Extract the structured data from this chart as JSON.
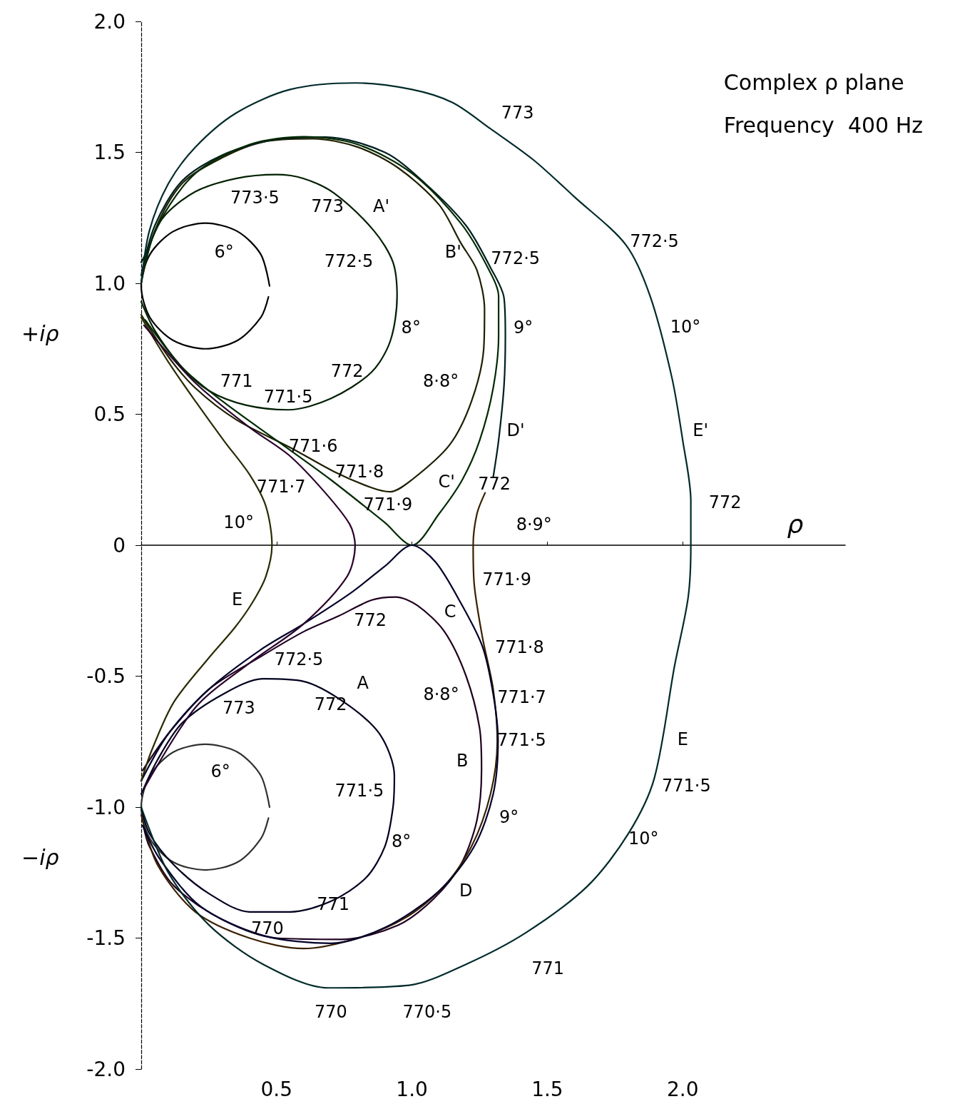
{
  "chart_data": {
    "type": "line",
    "title": "Complex ρ plane",
    "subtitle": "Frequency  400 Hz",
    "xlabel": "ρ",
    "ylabel": "+iρ",
    "xlim": [
      0,
      2.6
    ],
    "ylim": [
      -2,
      2
    ],
    "xticks": [
      0.5,
      {
        "value": 1,
        "label": "1.0"
      },
      1.5,
      {
        "value": 2,
        "label": "2.0"
      }
    ],
    "yticks": [
      {
        "value": -2,
        "label": "-2.0"
      },
      -1.5,
      {
        "value": -1,
        "label": "-1.0"
      },
      -0.5,
      0,
      0.5,
      {
        "value": 1,
        "label": "1.0"
      },
      1.5,
      {
        "value": 2,
        "label": "2.0"
      }
    ],
    "marker": "none",
    "line_style": "solid",
    "series": [
      {
        "color": "#000000",
        "x": [
          0.474,
          0.442,
          0.356,
          0.237,
          0.118,
          0.032,
          0,
          0.032,
          0.118,
          0.237,
          0.356,
          0.442,
          0.47
        ],
        "values": [
          0.99,
          1.11,
          1.198,
          1.23,
          1.198,
          1.11,
          0.99,
          0.87,
          0.782,
          0.75,
          0.782,
          0.87,
          0.948
        ]
      },
      {
        "color": "#303030",
        "x": [
          0.474,
          0.442,
          0.356,
          0.237,
          0.118,
          0.032,
          0,
          0.032,
          0.118,
          0.237,
          0.356,
          0.442,
          0.47
        ],
        "values": [
          -1.0,
          -0.88,
          -0.79,
          -0.76,
          -0.79,
          -0.88,
          -1.0,
          -1.12,
          -1.21,
          -1.24,
          -1.21,
          -1.12,
          -1.042
        ]
      },
      {
        "color": "#001f00",
        "x": [
          0,
          0.05,
          0.15,
          0.25,
          0.386,
          0.543,
          0.7,
          0.85,
          0.92,
          0.945,
          0.93,
          0.86,
          0.714,
          0.6,
          0.499,
          0.35,
          0.2,
          0.08,
          0.02,
          0
        ],
        "values": [
          0.93,
          0.82,
          0.68,
          0.59,
          0.535,
          0.517,
          0.56,
          0.66,
          0.78,
          0.95,
          1.08,
          1.2,
          1.343,
          1.4,
          1.415,
          1.4,
          1.35,
          1.25,
          1.12,
          1.08
        ]
      },
      {
        "color": "#00001f",
        "x": [
          0,
          0.06,
          0.15,
          0.3,
          0.45,
          0.6,
          0.75,
          0.88,
          0.935,
          0.93,
          0.9,
          0.83,
          0.7,
          0.55,
          0.4,
          0.25,
          0.12,
          0.03,
          0
        ],
        "values": [
          -0.95,
          -0.82,
          -0.68,
          -0.57,
          -0.51,
          -0.52,
          -0.6,
          -0.72,
          -0.88,
          -1.0,
          -1.15,
          -1.27,
          -1.36,
          -1.4,
          -1.4,
          -1.33,
          -1.22,
          -1.1,
          -1.0
        ]
      },
      {
        "color": "#1f1f00",
        "x": [
          0,
          0.1,
          0.2,
          0.35,
          0.556,
          0.714,
          0.85,
          0.919,
          1.0,
          1.139,
          1.22,
          1.265,
          1.268,
          1.24,
          1.181,
          1.1,
          0.95,
          0.8,
          0.635,
          0.45,
          0.3,
          0.15,
          0.05,
          0
        ],
        "values": [
          0.88,
          0.72,
          0.6,
          0.48,
          0.37,
          0.28,
          0.22,
          0.204,
          0.25,
          0.383,
          0.55,
          0.75,
          0.9,
          1.05,
          1.153,
          1.3,
          1.44,
          1.52,
          1.552,
          1.54,
          1.48,
          1.38,
          1.2,
          1.0
        ]
      },
      {
        "color": "#1f001f",
        "x": [
          0.005,
          0.1,
          0.25,
          0.45,
          0.6,
          0.73,
          0.85,
          0.94,
          1.02,
          1.12,
          1.2,
          1.25,
          1.257,
          1.24,
          1.18,
          1.08,
          0.95,
          0.74,
          0.5,
          0.3,
          0.12,
          0.03,
          0.01
        ],
        "values": [
          -0.86,
          -0.72,
          -0.55,
          -0.42,
          -0.33,
          -0.27,
          -0.21,
          -0.198,
          -0.23,
          -0.33,
          -0.5,
          -0.7,
          -0.855,
          -1.05,
          -1.22,
          -1.35,
          -1.45,
          -1.505,
          -1.5,
          -1.43,
          -1.3,
          -1.15,
          -1.08
        ]
      },
      {
        "color": "#001f1f",
        "x": [
          1.3,
          1.32,
          1.34,
          1.345,
          1.34,
          1.29,
          1.2,
          1.05,
          0.9,
          0.68,
          0.5,
          0.3,
          0.15,
          0.05,
          0
        ],
        "values": [
          0.26,
          0.4,
          0.61,
          0.8,
          0.944,
          1.06,
          1.22,
          1.38,
          1.5,
          1.558,
          1.55,
          1.49,
          1.39,
          1.22,
          1.03
        ]
      },
      {
        "color": "#3a2000",
        "x": [
          1.27,
          1.24,
          1.226,
          1.23,
          1.26,
          1.3,
          1.315,
          1.29,
          1.22,
          1.12,
          0.98,
          0.8,
          0.6,
          0.4,
          0.2,
          0.06,
          0
        ],
        "values": [
          0.2,
          0.12,
          0,
          -0.15,
          -0.35,
          -0.55,
          -0.75,
          -0.95,
          -1.15,
          -1.3,
          -1.42,
          -1.5,
          -1.54,
          -1.5,
          -1.4,
          -1.22,
          -1.03
        ]
      },
      {
        "color": "#002a00",
        "x": [
          0.015,
          0.15,
          0.3,
          0.5,
          0.7,
          0.898,
          1.0,
          1.1,
          1.186,
          1.25,
          1.3,
          1.32,
          1.32,
          1.28,
          1.18,
          1.0,
          0.8,
          0.6,
          0.4,
          0.2,
          0.06,
          0.01
        ],
        "values": [
          0.86,
          0.68,
          0.55,
          0.4,
          0.25,
          0.088,
          0,
          0.12,
          0.25,
          0.4,
          0.6,
          0.8,
          0.95,
          1.06,
          1.23,
          1.42,
          1.53,
          1.56,
          1.53,
          1.42,
          1.22,
          1.06
        ]
      },
      {
        "color": "#00002a",
        "x": [
          0,
          0.1,
          0.25,
          0.44,
          0.6,
          0.777,
          0.9,
          1.0,
          1.087,
          1.18,
          1.26,
          1.3,
          1.318,
          1.3,
          1.23,
          1.1,
          0.9,
          0.7,
          0.45,
          0.22,
          0.07,
          0.005
        ],
        "values": [
          -0.9,
          -0.72,
          -0.55,
          -0.4,
          -0.3,
          -0.18,
          -0.08,
          0,
          -0.064,
          -0.22,
          -0.386,
          -0.568,
          -0.743,
          -0.95,
          -1.15,
          -1.32,
          -1.46,
          -1.52,
          -1.49,
          -1.38,
          -1.2,
          -1.07
        ]
      },
      {
        "color": "#2a2a00",
        "x": [
          0,
          0.1,
          0.2,
          0.307,
          0.4,
          0.46,
          0.483,
          0.46,
          0.41,
          0.346,
          0.25,
          0.12,
          0.04,
          0
        ],
        "values": [
          0.87,
          0.7,
          0.55,
          0.397,
          0.27,
          0.15,
          0,
          -0.12,
          -0.22,
          -0.314,
          -0.43,
          -0.6,
          -0.78,
          -0.9
        ]
      },
      {
        "color": "#2a002a",
        "x": [
          0.01,
          0.2,
          0.4,
          0.55,
          0.68,
          0.77,
          0.79,
          0.76,
          0.6,
          0.4,
          0.2,
          0.01
        ],
        "values": [
          0.84,
          0.62,
          0.45,
          0.34,
          0.2,
          0.08,
          0,
          -0.12,
          -0.3,
          -0.45,
          -0.62,
          -0.93
        ]
      },
      {
        "color": "#002a2a",
        "x": [
          0,
          0.03,
          0.1,
          0.2,
          0.35,
          0.55,
          0.79,
          1.0,
          1.15,
          1.29,
          1.45,
          1.6,
          1.79,
          1.88,
          1.96,
          2.0,
          2.03,
          2.03,
          2.02,
          1.97,
          1.895,
          1.8,
          1.65,
          1.42,
          1.2,
          0.99,
          0.69,
          0.45,
          0.25,
          0.1,
          0
        ],
        "values": [
          1.0,
          1.2,
          1.38,
          1.52,
          1.65,
          1.74,
          1.765,
          1.74,
          1.69,
          1.59,
          1.47,
          1.33,
          1.147,
          0.95,
          0.64,
          0.4,
          0.169,
          0,
          -0.2,
          -0.46,
          -0.89,
          -1.1,
          -1.3,
          -1.48,
          -1.6,
          -1.68,
          -1.69,
          -1.6,
          -1.45,
          -1.25,
          -1.0
        ]
      }
    ],
    "annotations": [
      {
        "text": "6°",
        "x": 0.356,
        "y": 1.198
      },
      {
        "text": "6°",
        "x": 0.356,
        "y": -0.79
      },
      {
        "text": "8°",
        "x": 0.92,
        "y": 0.78
      },
      {
        "text": "8°",
        "x": 0.9,
        "y": -1.15
      },
      {
        "text": "8·8°",
        "x": 1.22,
        "y": 0.55
      },
      {
        "text": "8·8°",
        "x": 1.2,
        "y": -0.5
      },
      {
        "text": "9°",
        "x": 1.345,
        "y": 0.8
      },
      {
        "text": "9°",
        "x": 1.29,
        "y": -0.95
      },
      {
        "text": "10°",
        "x": 1.96,
        "y": 0.64
      },
      {
        "text": "10°",
        "x": 1.8,
        "y": -1.1
      },
      {
        "text": "10°",
        "x": 0.46,
        "y": 0.15
      },
      {
        "text": "8·9°",
        "x": 1.24,
        "y": 0.12
      },
      {
        "text": "A'",
        "x": 0.86,
        "y": 1.2
      },
      {
        "text": "B'",
        "x": 1.181,
        "y": 1.153
      },
      {
        "text": "C'",
        "x": 1.186,
        "y": 0.25
      },
      {
        "text": "D'",
        "x": 1.32,
        "y": 0.4
      },
      {
        "text": "E'",
        "x": 2.0,
        "y": 0.4
      },
      {
        "text": "A",
        "x": 0.75,
        "y": -0.6
      },
      {
        "text": "B",
        "x": 1.257,
        "y": -0.855
      },
      {
        "text": "C",
        "x": 1.12,
        "y": -0.33
      },
      {
        "text": "D",
        "x": 1.12,
        "y": -1.3
      },
      {
        "text": "E",
        "x": 1.895,
        "y": -0.89
      },
      {
        "text": "E",
        "x": 0.41,
        "y": -0.22
      },
      {
        "text": "773·5",
        "x": 0.499,
        "y": 1.415
      },
      {
        "text": "773",
        "x": 0.714,
        "y": 1.343
      },
      {
        "text": "772·5",
        "x": 0.93,
        "y": 1.08
      },
      {
        "text": "772",
        "x": 0.85,
        "y": 0.66
      },
      {
        "text": "771",
        "x": 0.386,
        "y": 0.535
      },
      {
        "text": "771·5",
        "x": 0.543,
        "y": 0.517
      },
      {
        "text": "771·6",
        "x": 0.556,
        "y": 0.37
      },
      {
        "text": "771·8",
        "x": 0.714,
        "y": 0.28
      },
      {
        "text": "771·7",
        "x": 0.68,
        "y": 0.2
      },
      {
        "text": "771·9",
        "x": 0.898,
        "y": 0.088
      },
      {
        "text": "772",
        "x": 1.186,
        "y": 0.25
      },
      {
        "text": "772·5",
        "x": 1.29,
        "y": 1.06
      },
      {
        "text": "773",
        "x": 1.29,
        "y": 1.59
      },
      {
        "text": "772·5",
        "x": 1.79,
        "y": 1.147
      },
      {
        "text": "772",
        "x": 2.03,
        "y": 0.169
      },
      {
        "text": "771·9",
        "x": 1.087,
        "y": -0.064
      },
      {
        "text": "772",
        "x": 0.73,
        "y": -0.27
      },
      {
        "text": "772·5",
        "x": 0.44,
        "y": -0.4
      },
      {
        "text": "771·8",
        "x": 1.26,
        "y": -0.386
      },
      {
        "text": "771·7",
        "x": 1.3,
        "y": -0.568
      },
      {
        "text": "771·5",
        "x": 1.318,
        "y": -0.743
      },
      {
        "text": "773",
        "x": 0.3,
        "y": -0.57
      },
      {
        "text": "772",
        "x": 0.75,
        "y": -0.6
      },
      {
        "text": "771·5",
        "x": 0.935,
        "y": -0.88
      },
      {
        "text": "771",
        "x": 0.83,
        "y": -1.27
      },
      {
        "text": "770",
        "x": 0.4,
        "y": -1.4
      },
      {
        "text": "771·5",
        "x": 1.895,
        "y": -0.89
      },
      {
        "text": "771",
        "x": 1.42,
        "y": -1.48
      },
      {
        "text": "770",
        "x": 0.69,
        "y": -1.69
      },
      {
        "text": "770·5",
        "x": 0.99,
        "y": -1.68
      },
      "−iρ"
    ]
  }
}
